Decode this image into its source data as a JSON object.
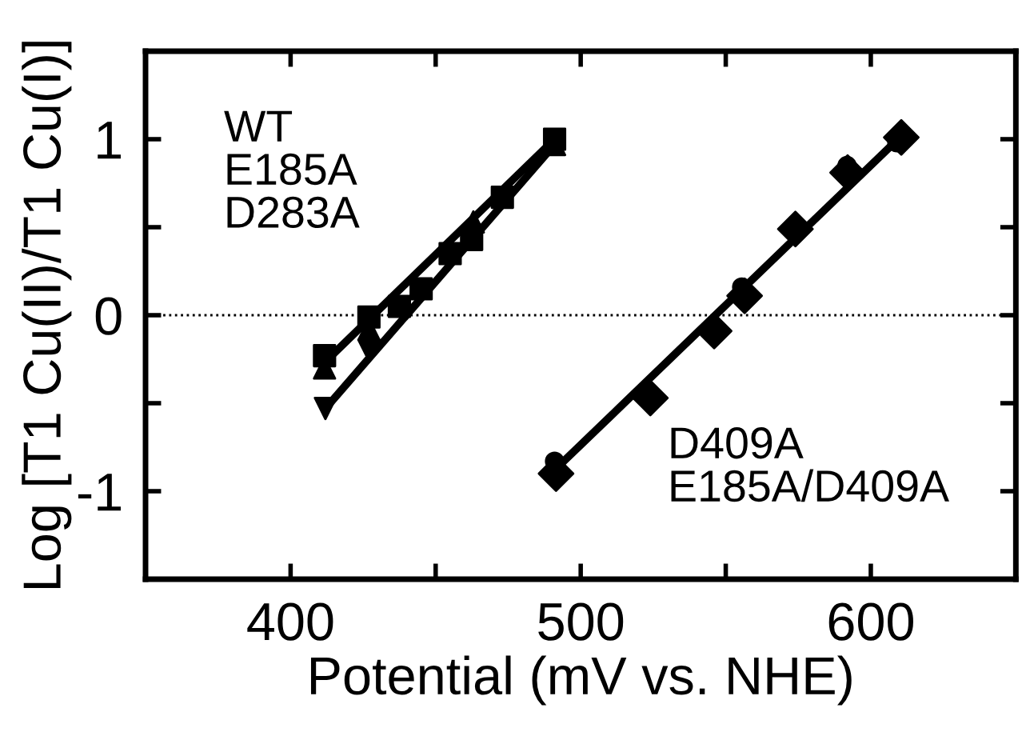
{
  "chart_data": {
    "type": "scatter",
    "xlabel": "Potential (mV vs. NHE)",
    "ylabel": "Log [T1 Cu(II)/T1 Cu(I)]",
    "xlim": [
      350,
      650
    ],
    "ylim": [
      -1.5,
      1.5
    ],
    "xticks": [
      400,
      {
        "value": 450,
        "label": null
      },
      500,
      {
        "value": 550,
        "label": null
      },
      600,
      {
        "value": 650,
        "label": null
      }
    ],
    "yticks": [
      -1,
      {
        "value": -0.5,
        "label": null
      },
      0,
      {
        "value": 0.5,
        "label": null
      },
      1
    ],
    "grid": false,
    "legend": false,
    "ref_lines": [
      {
        "axis": "y",
        "value": 0,
        "line_style": "dotted",
        "color": "#000000"
      }
    ],
    "annotations": [
      "WT\nE185A\nD283A",
      "D409A\nE185A/D409A"
    ],
    "series": [
      {
        "type": "line",
        "marker": "none",
        "color": "#000000",
        "x": [
          411,
          491
        ],
        "values": [
          -0.28,
          1.0
        ]
      },
      {
        "type": "line",
        "marker": "none",
        "color": "#000000",
        "x": [
          412,
          491
        ],
        "values": [
          -0.53,
          0.97
        ]
      },
      {
        "type": "line",
        "marker": "none",
        "color": "#000000",
        "x": [
          491,
          610
        ],
        "values": [
          -0.88,
          1.01
        ]
      },
      {
        "marker": "square",
        "color": "#000000",
        "x": [
          411.7,
          427,
          437.5,
          445,
          455,
          462.4,
          473,
          491
        ],
        "values": [
          -0.23,
          -0.01,
          0.05,
          0.15,
          0.35,
          0.43,
          0.67,
          1.0
        ]
      },
      {
        "marker": "triangle",
        "color": "#000000",
        "x": [
          411.7,
          427,
          445,
          463,
          491
        ],
        "values": [
          -0.3,
          -0.08,
          null,
          0.53,
          0.97
        ]
      },
      {
        "marker": "triangle_down",
        "color": "#000000",
        "x": [
          412,
          427
        ],
        "values": [
          -0.53,
          -0.2
        ]
      },
      {
        "marker": "diamond",
        "color": "#000000",
        "x": [
          491.5,
          524,
          546,
          556.5,
          574,
          592,
          610.5
        ],
        "values": [
          -0.9,
          -0.47,
          -0.09,
          0.11,
          0.49,
          0.81,
          1.01
        ]
      },
      {
        "marker": "circle",
        "color": "#000000",
        "x": [
          491,
          555.5,
          591.8,
          609
        ],
        "values": [
          -0.83,
          0.16,
          0.85,
          0.98
        ]
      }
    ]
  }
}
